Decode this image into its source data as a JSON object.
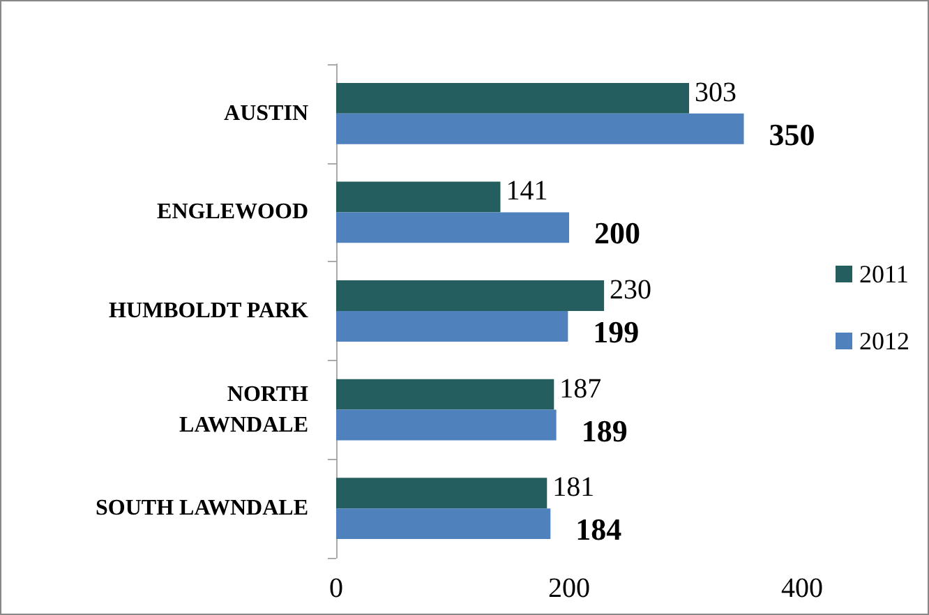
{
  "chart_data": {
    "type": "bar",
    "orientation": "horizontal",
    "categories": [
      "AUSTIN",
      "ENGLEWOOD",
      "HUMBOLDT PARK",
      "NORTH\nLAWNDALE",
      "SOUTH LAWNDALE"
    ],
    "series": [
      {
        "name": "2011",
        "color": "#245e5e",
        "values": [
          303,
          141,
          230,
          187,
          181
        ]
      },
      {
        "name": "2012",
        "color": "#4f81bd",
        "values": [
          350,
          200,
          199,
          189,
          184
        ]
      }
    ],
    "xlim": [
      0,
      400
    ],
    "xticks": [
      0,
      200,
      400
    ],
    "grid": false,
    "legend": "right",
    "data_labels": true
  }
}
